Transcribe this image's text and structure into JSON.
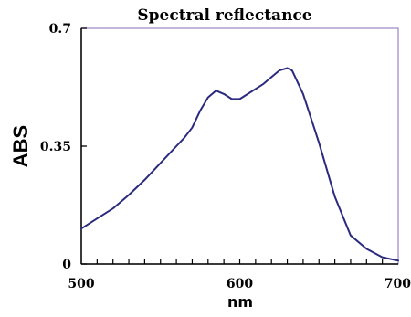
{
  "chart_data": {
    "type": "line",
    "title": "Spectral reflectance",
    "xlabel": "nm",
    "ylabel": "ABS",
    "xlim": [
      500,
      700
    ],
    "ylim": [
      0,
      0.7
    ],
    "x_ticks": [
      500,
      600,
      700
    ],
    "x_tick_labels": [
      "500",
      "600",
      "700"
    ],
    "x_minor_tick_step": 10,
    "y_ticks": [
      0,
      0.35,
      0.7
    ],
    "y_tick_labels": [
      "0",
      "0.35",
      "0.7"
    ],
    "grid": false,
    "colors": {
      "series": "#2b2a7e",
      "frame": "#9a86c8",
      "axis": "#000000"
    },
    "series": [
      {
        "x": [
          500,
          510,
          520,
          530,
          540,
          550,
          560,
          565,
          570,
          575,
          580,
          585,
          590,
          595,
          600,
          605,
          610,
          615,
          620,
          625,
          630,
          633,
          640,
          650,
          660,
          670,
          680,
          690,
          700
        ],
        "values": [
          0.105,
          0.135,
          0.165,
          0.205,
          0.25,
          0.3,
          0.35,
          0.375,
          0.405,
          0.455,
          0.495,
          0.515,
          0.505,
          0.49,
          0.49,
          0.505,
          0.52,
          0.535,
          0.555,
          0.575,
          0.582,
          0.575,
          0.505,
          0.36,
          0.2,
          0.085,
          0.045,
          0.02,
          0.01
        ]
      }
    ]
  }
}
